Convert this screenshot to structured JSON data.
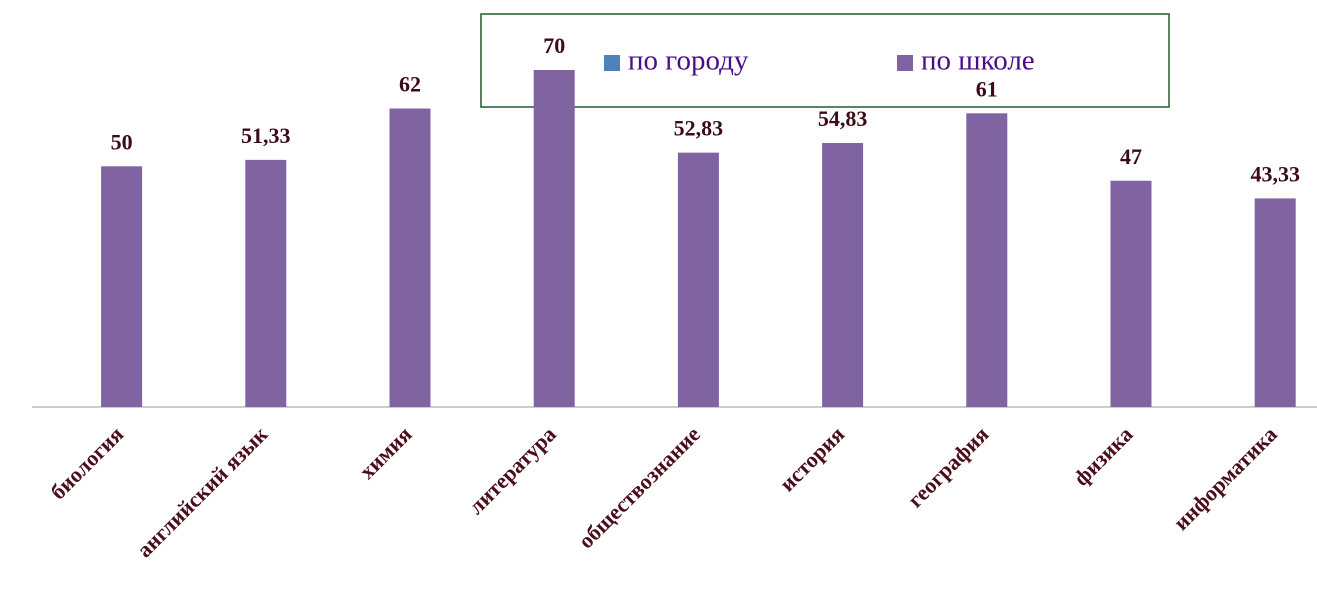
{
  "chart_data": {
    "type": "bar",
    "categories": [
      "биология",
      "английский язык",
      "химия",
      "литература",
      "обществознание",
      "история",
      "география",
      "физика",
      "информатика"
    ],
    "series": [
      {
        "name": "по городу",
        "color": "#4f81bd",
        "values": [
          null,
          null,
          null,
          null,
          null,
          null,
          null,
          null,
          null
        ]
      },
      {
        "name": "по школе",
        "color": "#8064a2",
        "values": [
          50,
          51.33,
          62,
          70,
          52.83,
          54.83,
          61,
          47,
          43.33
        ],
        "value_labels": [
          "50",
          "51,33",
          "62",
          "70",
          "52,83",
          "54,83",
          "61",
          "47",
          "43,33"
        ]
      }
    ],
    "legend": "top"
  }
}
